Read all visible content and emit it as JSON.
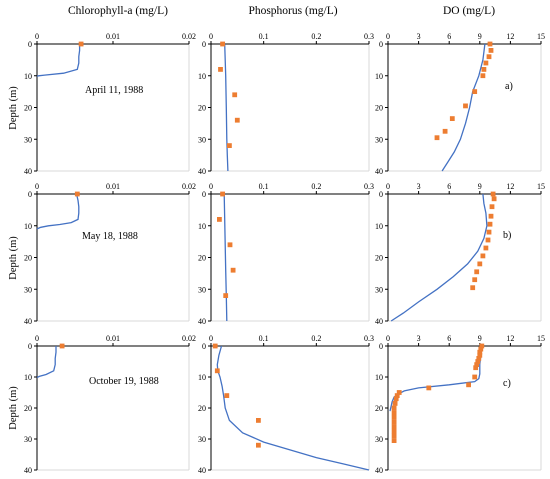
{
  "colors": {
    "model_line": "#4472c4",
    "observed_marker": "#ed7d31"
  },
  "column_titles": [
    "Chlorophyll-a (mg/L)",
    "Phosphorus (mg/L)",
    "DO (mg/L)"
  ],
  "y_axis_label": "Depth (m)",
  "dates": [
    "April 11, 1988",
    "May 18, 1988",
    "October 19, 1988"
  ],
  "panel_labels": [
    "a)",
    "b)",
    "c)"
  ],
  "chart_data": [
    {
      "type": "line",
      "row": 0,
      "col": 0,
      "x_ticks": [
        "0",
        "0.01",
        "0.02"
      ],
      "y_ticks": [
        "0",
        "10",
        "20",
        "30",
        "40"
      ],
      "xlim": [
        0,
        0.02
      ],
      "ylim": [
        0,
        40
      ],
      "y_inverted": true,
      "model": {
        "x": [
          0.0056,
          0.0056,
          0.0055,
          0.0055,
          0.0053,
          0.0035,
          0.001,
          0.0002,
          0.0
        ],
        "y": [
          0,
          2,
          4,
          6,
          8,
          9.2,
          9.8,
          10.0,
          10.2
        ]
      },
      "observed": {
        "x": [
          0.0058
        ],
        "y": [
          0
        ]
      }
    },
    {
      "type": "line",
      "row": 0,
      "col": 1,
      "x_ticks": [
        "0",
        "0.1",
        "0.2",
        "0.3"
      ],
      "y_ticks": [
        "0",
        "10",
        "20",
        "30",
        "40"
      ],
      "xlim": [
        0,
        0.3
      ],
      "ylim": [
        0,
        40
      ],
      "y_inverted": true,
      "model": {
        "x": [
          0.026,
          0.027,
          0.028,
          0.029,
          0.03,
          0.031,
          0.032
        ],
        "y": [
          0,
          5,
          10,
          20,
          30,
          35,
          40
        ]
      },
      "observed": {
        "x": [
          0.022,
          0.018,
          0.045,
          0.05,
          0.035
        ],
        "y": [
          0,
          8,
          16,
          24,
          32
        ]
      }
    },
    {
      "type": "line",
      "row": 0,
      "col": 2,
      "x_ticks": [
        "0",
        "3",
        "6",
        "9",
        "12",
        "15"
      ],
      "y_ticks": [
        "0",
        "10",
        "20",
        "30",
        "40"
      ],
      "xlim": [
        0,
        15
      ],
      "ylim": [
        0,
        40
      ],
      "y_inverted": true,
      "model": {
        "x": [
          9.5,
          9.3,
          8.9,
          8.3,
          8.0,
          7.6,
          7.1,
          6.5,
          5.9,
          5.3
        ],
        "y": [
          0,
          5,
          10,
          15,
          20,
          25,
          30,
          34,
          37,
          40
        ]
      },
      "observed": {
        "x": [
          10.0,
          10.1,
          9.9,
          9.6,
          9.4,
          9.3,
          8.5,
          7.6,
          6.3,
          5.6,
          4.8
        ],
        "y": [
          0,
          2,
          4,
          6,
          8,
          10,
          15,
          19.5,
          23.5,
          27.5,
          29.5
        ]
      }
    },
    {
      "type": "line",
      "row": 1,
      "col": 0,
      "x_ticks": [
        "0",
        "0.01",
        "0.02"
      ],
      "y_ticks": [
        "0",
        "10",
        "20",
        "30",
        "40"
      ],
      "xlim": [
        0,
        0.02
      ],
      "ylim": [
        0,
        40
      ],
      "y_inverted": true,
      "model": {
        "x": [
          0.0052,
          0.0054,
          0.0055,
          0.0055,
          0.0054,
          0.0045,
          0.003,
          0.0015,
          0.0005,
          0.0
        ],
        "y": [
          0,
          2,
          4,
          6,
          8,
          9,
          9.6,
          10,
          10.5,
          11
        ]
      },
      "observed": {
        "x": [
          0.0053
        ],
        "y": [
          0
        ]
      }
    },
    {
      "type": "line",
      "row": 1,
      "col": 1,
      "x_ticks": [
        "0",
        "0.1",
        "0.2",
        "0.3"
      ],
      "y_ticks": [
        "0",
        "10",
        "20",
        "30",
        "40"
      ],
      "xlim": [
        0,
        0.3
      ],
      "ylim": [
        0,
        40
      ],
      "y_inverted": true,
      "model": {
        "x": [
          0.025,
          0.026,
          0.027,
          0.028,
          0.029,
          0.03
        ],
        "y": [
          0,
          8,
          16,
          24,
          32,
          40
        ]
      },
      "observed": {
        "x": [
          0.022,
          0.016,
          0.036,
          0.042,
          0.028
        ],
        "y": [
          0,
          8,
          16,
          24,
          32
        ]
      }
    },
    {
      "type": "line",
      "row": 1,
      "col": 2,
      "x_ticks": [
        "0",
        "3",
        "6",
        "9",
        "12",
        "15"
      ],
      "y_ticks": [
        "0",
        "10",
        "20",
        "30",
        "40"
      ],
      "xlim": [
        0,
        15
      ],
      "ylim": [
        0,
        40
      ],
      "y_inverted": true,
      "model": {
        "x": [
          9.3,
          9.4,
          9.6,
          9.7,
          9.4,
          8.8,
          7.8,
          6.4,
          4.8,
          3.0,
          1.5,
          0.3
        ],
        "y": [
          0,
          3,
          6,
          10,
          14,
          18,
          22,
          26,
          30,
          34,
          37.5,
          40
        ]
      },
      "observed": {
        "x": [
          10.3,
          10.4,
          10.2,
          10.1,
          10.0,
          9.9,
          9.8,
          9.6,
          9.3,
          9.0,
          8.7,
          8.5,
          8.3
        ],
        "y": [
          0,
          1.5,
          4,
          7,
          9.5,
          12,
          14.5,
          17,
          19.5,
          22,
          24.5,
          27,
          29.5
        ]
      }
    },
    {
      "type": "line",
      "row": 2,
      "col": 0,
      "x_ticks": [
        "0",
        "0.01",
        "0.02"
      ],
      "y_ticks": [
        "0",
        "10",
        "20",
        "30",
        "40"
      ],
      "xlim": [
        0,
        0.02
      ],
      "ylim": [
        0,
        40
      ],
      "y_inverted": true,
      "model": {
        "x": [
          0.0025,
          0.0025,
          0.0024,
          0.0024,
          0.0022,
          0.0012,
          0.0003,
          0.0
        ],
        "y": [
          0,
          2,
          4,
          6,
          8,
          9.2,
          9.8,
          10.2
        ]
      },
      "observed": {
        "x": [
          0.0033
        ],
        "y": [
          0
        ]
      }
    },
    {
      "type": "line",
      "row": 2,
      "col": 1,
      "x_ticks": [
        "0",
        "0.1",
        "0.2",
        "0.3"
      ],
      "y_ticks": [
        "0",
        "10",
        "20",
        "30",
        "40"
      ],
      "xlim": [
        0,
        0.3
      ],
      "ylim": [
        0,
        40
      ],
      "y_inverted": true,
      "model": {
        "x": [
          0.02,
          0.015,
          0.012,
          0.013,
          0.017,
          0.021,
          0.024,
          0.027,
          0.035,
          0.06,
          0.1,
          0.15,
          0.2,
          0.25,
          0.3
        ],
        "y": [
          0,
          3,
          6,
          8,
          10,
          13,
          16,
          20,
          24,
          28,
          31,
          33.5,
          36,
          38,
          40
        ]
      },
      "observed": {
        "x": [
          0.008,
          0.012,
          0.03,
          0.09,
          0.09
        ],
        "y": [
          0,
          8,
          16,
          24,
          32
        ]
      }
    },
    {
      "type": "line",
      "row": 2,
      "col": 2,
      "x_ticks": [
        "0",
        "3",
        "6",
        "9",
        "12",
        "15"
      ],
      "y_ticks": [
        "0",
        "10",
        "20",
        "30",
        "40"
      ],
      "xlim": [
        0,
        15
      ],
      "ylim": [
        0,
        40
      ],
      "y_inverted": true,
      "model": {
        "x": [
          9.1,
          9.1,
          9.0,
          9.0,
          8.9,
          8.5,
          6.0,
          3.0,
          1.6,
          1.0,
          0.6,
          0.4,
          0.3,
          0.2
        ],
        "y": [
          0,
          3,
          6,
          9,
          10.5,
          11.5,
          12.5,
          13.5,
          14.5,
          15.5,
          16.5,
          18,
          19.5,
          21
        ]
      },
      "observed": {
        "x": [
          9.2,
          9.1,
          9.0,
          9.0,
          8.9,
          8.8,
          8.7,
          8.6,
          8.5,
          7.9,
          4.0,
          1.1,
          0.9,
          0.8,
          0.7,
          0.6,
          0.6,
          0.6,
          0.6,
          0.6,
          0.6,
          0.6,
          0.6
        ],
        "y": [
          0,
          1,
          2,
          3,
          4,
          5,
          6,
          7,
          10,
          12.5,
          13.5,
          15,
          16,
          17,
          18.5,
          20,
          21.5,
          23,
          24.5,
          26,
          27.5,
          29,
          30.5
        ]
      }
    }
  ]
}
